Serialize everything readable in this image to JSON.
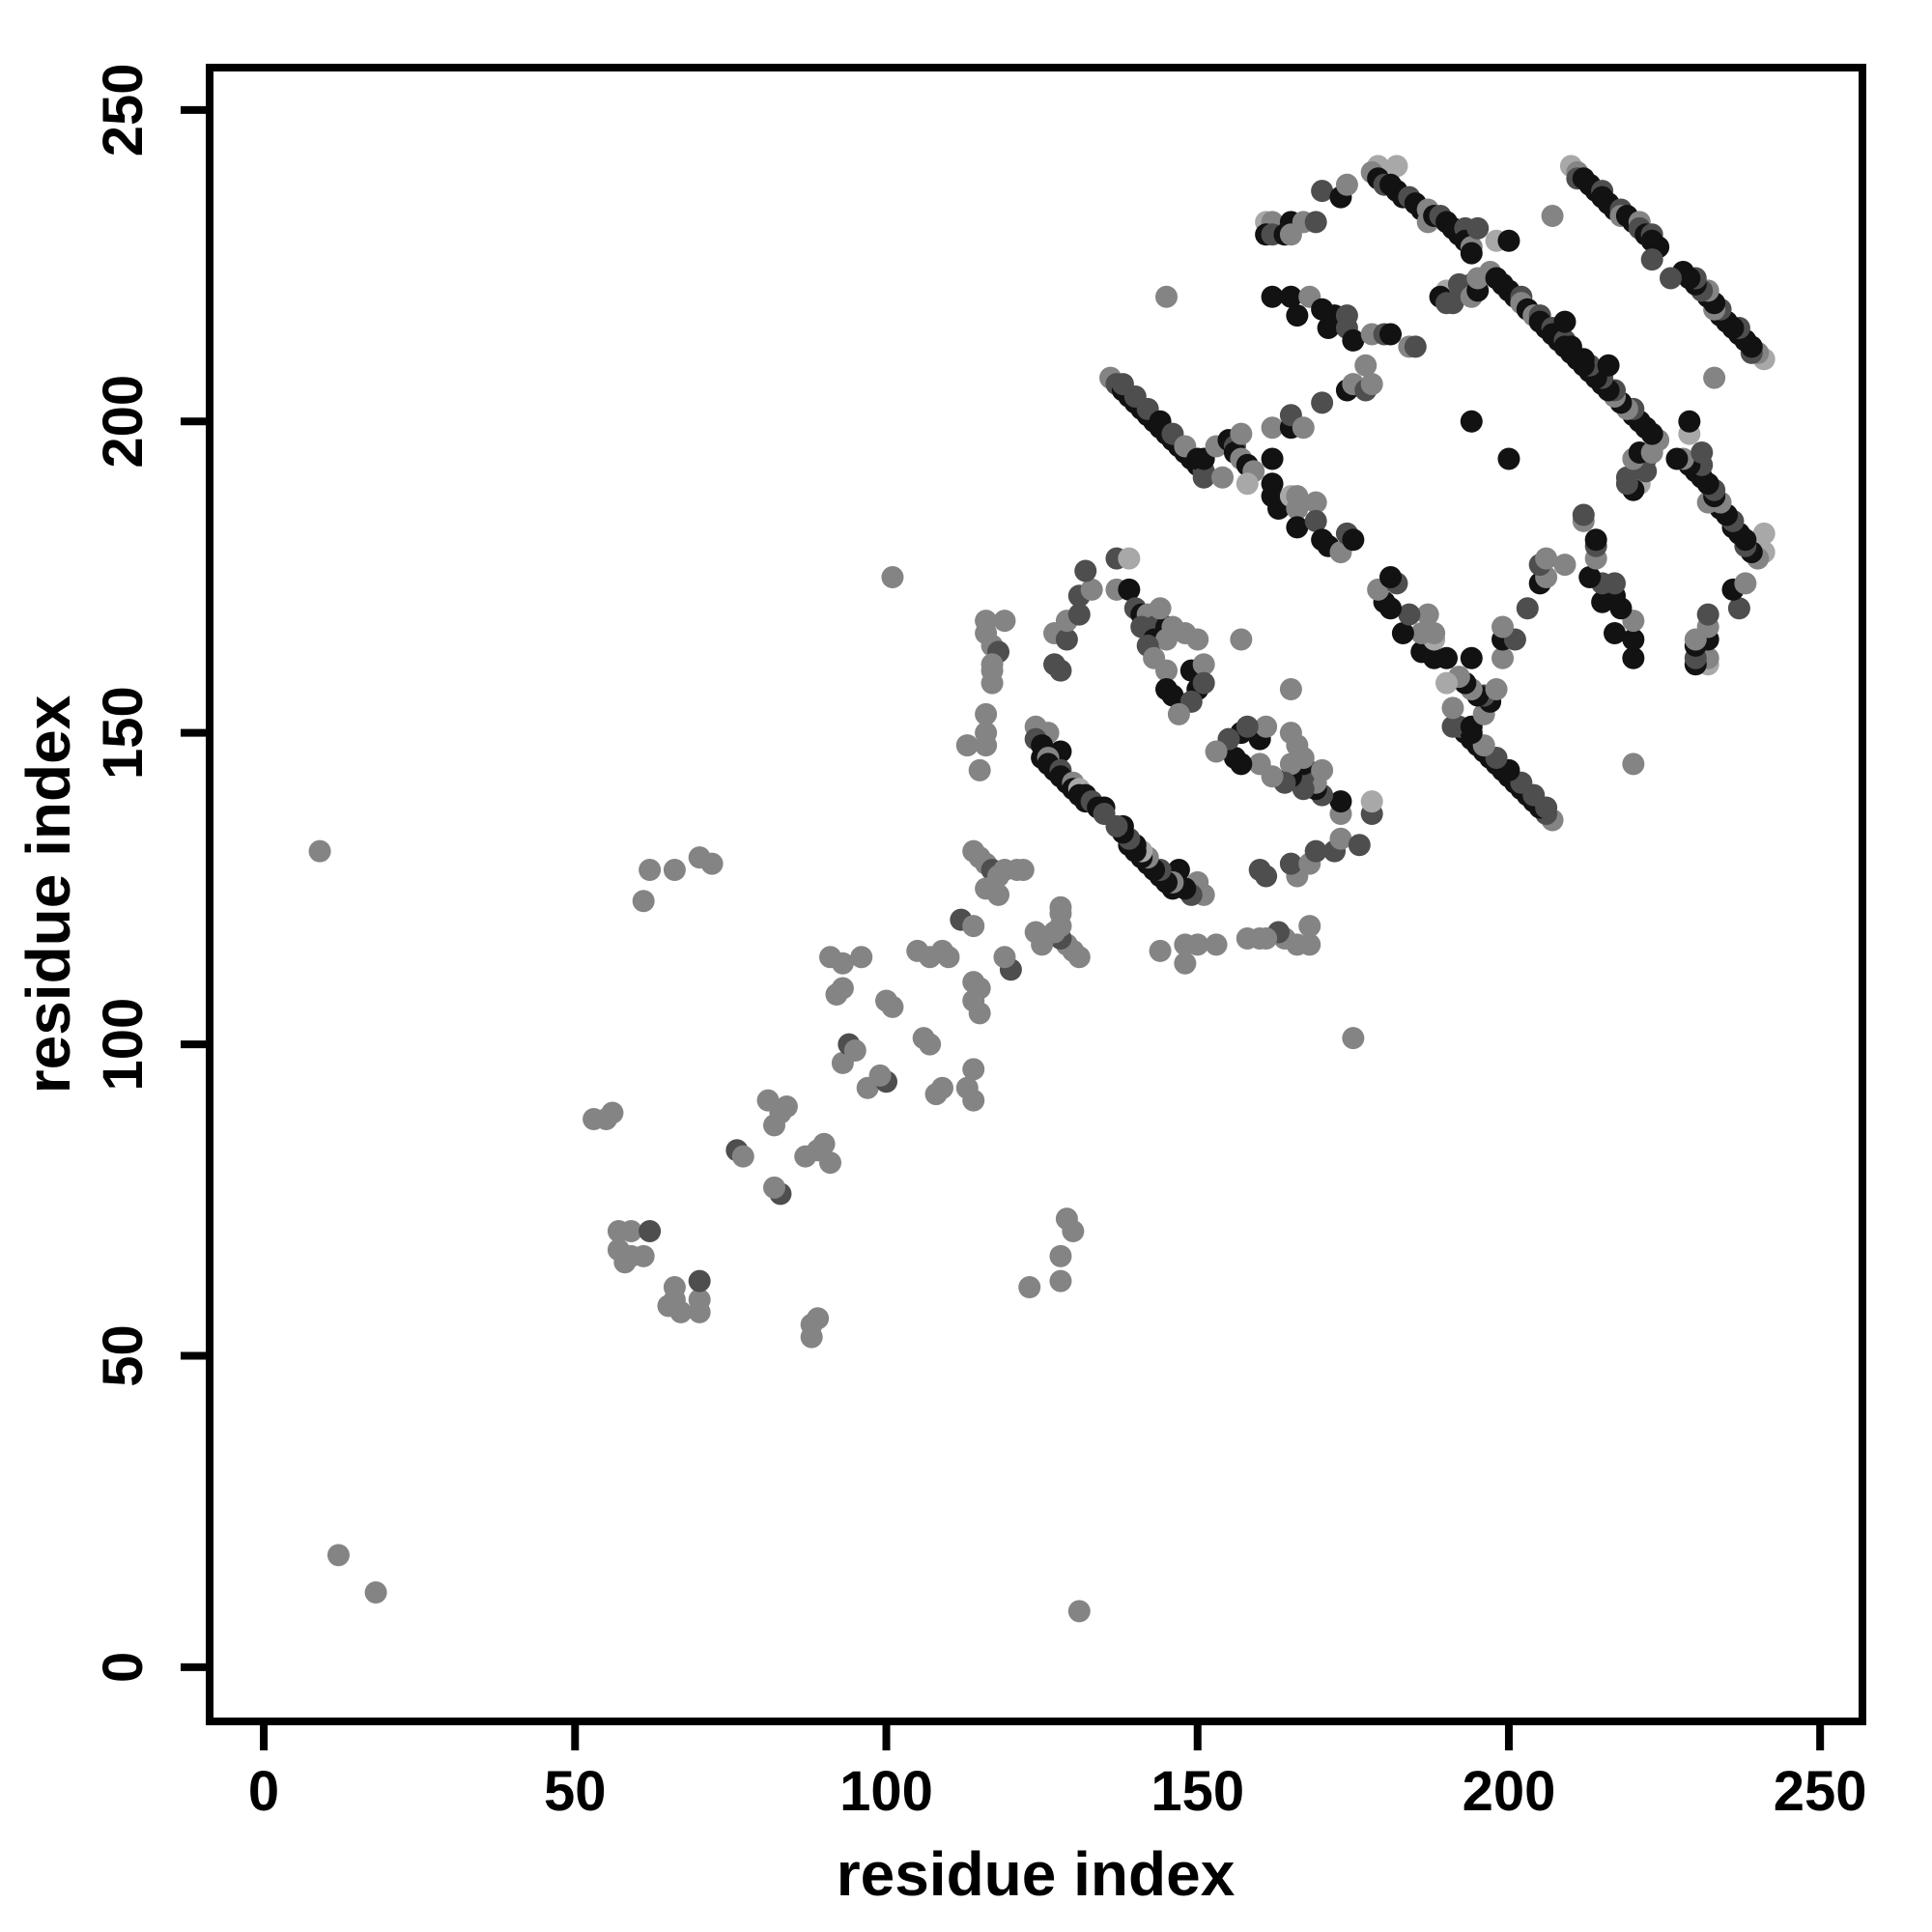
{
  "figure": {
    "background": "#ffffff",
    "frame_color": "#000000"
  },
  "chart_data": {
    "type": "scatter",
    "title": "",
    "xlabel": "residue index",
    "ylabel": "residue index",
    "xlim": [
      -8.7,
      256.8
    ],
    "ylim": [
      -8.7,
      256.8
    ],
    "xticks": [
      0,
      50,
      100,
      150,
      200,
      250
    ],
    "yticks": [
      0,
      50,
      100,
      150,
      200,
      250
    ],
    "grid": false,
    "legend": "none",
    "marker_shape": "circle",
    "symmetric": true,
    "shade_colors": {
      "l": "#a8a8a8",
      "m": "#848484",
      "d": "#4e4e4e",
      "k": "#121212"
    },
    "points": [
      [
        12,
        18,
        "m"
      ],
      [
        9,
        131,
        "m"
      ],
      [
        61,
        123,
        "m"
      ],
      [
        62,
        128,
        "m"
      ],
      [
        66,
        128,
        "m"
      ],
      [
        70,
        130,
        "m"
      ],
      [
        72,
        129,
        "m"
      ],
      [
        53,
        88,
        "m"
      ],
      [
        55,
        88,
        "m"
      ],
      [
        56,
        89,
        "m"
      ],
      [
        57,
        70,
        "m"
      ],
      [
        59,
        70,
        "m"
      ],
      [
        62,
        70,
        "d"
      ],
      [
        57,
        67,
        "m"
      ],
      [
        59,
        66,
        "m"
      ],
      [
        61,
        66,
        "m"
      ],
      [
        58,
        65,
        "m"
      ],
      [
        76,
        83,
        "d"
      ],
      [
        77,
        82,
        "m"
      ],
      [
        82,
        87,
        "m"
      ],
      [
        83,
        89,
        "m"
      ],
      [
        84,
        90,
        "m"
      ],
      [
        81,
        91,
        "m"
      ],
      [
        93,
        97,
        "m"
      ],
      [
        94,
        100,
        "d"
      ],
      [
        95,
        99,
        "m"
      ],
      [
        100,
        107,
        "m"
      ],
      [
        101,
        106,
        "m"
      ],
      [
        92,
        108,
        "m"
      ],
      [
        93,
        109,
        "m"
      ],
      [
        91,
        114,
        "m"
      ],
      [
        93,
        113,
        "m"
      ],
      [
        96,
        114,
        "m"
      ],
      [
        105,
        115,
        "m"
      ],
      [
        107,
        114,
        "m"
      ],
      [
        109,
        115,
        "m"
      ],
      [
        110,
        114,
        "m"
      ],
      [
        112,
        120,
        "d"
      ],
      [
        114,
        119,
        "m"
      ],
      [
        101,
        175,
        "m"
      ],
      [
        114,
        131,
        "m"
      ],
      [
        115,
        130,
        "m"
      ],
      [
        116,
        129,
        "m"
      ],
      [
        117,
        128,
        "d"
      ],
      [
        119,
        128,
        "m"
      ],
      [
        121,
        128,
        "m"
      ],
      [
        122,
        128,
        "m"
      ],
      [
        118,
        127,
        "m"
      ],
      [
        116,
        125,
        "m"
      ],
      [
        118,
        124,
        "m"
      ],
      [
        113,
        148,
        "m"
      ],
      [
        116,
        148,
        "m"
      ],
      [
        116,
        150,
        "m"
      ],
      [
        115,
        144,
        "m"
      ],
      [
        116,
        168,
        "m"
      ],
      [
        119,
        168,
        "m"
      ],
      [
        116,
        166,
        "m"
      ],
      [
        117,
        164,
        "m"
      ],
      [
        118,
        163,
        "d"
      ],
      [
        117,
        161,
        "m"
      ],
      [
        117,
        160,
        "m"
      ],
      [
        117,
        158,
        "m"
      ],
      [
        116,
        153,
        "m"
      ],
      [
        124,
        151,
        "m"
      ],
      [
        126,
        150,
        "m"
      ],
      [
        124,
        149,
        "d"
      ],
      [
        125,
        148,
        "k"
      ],
      [
        128,
        147,
        "k"
      ],
      [
        125,
        146,
        "k"
      ],
      [
        126,
        146,
        "m"
      ],
      [
        126,
        145,
        "k"
      ],
      [
        127,
        144,
        "k"
      ],
      [
        128,
        144,
        "d"
      ],
      [
        128,
        143,
        "k"
      ],
      [
        129,
        142,
        "k"
      ],
      [
        130,
        142,
        "m"
      ],
      [
        130,
        141,
        "k"
      ],
      [
        131,
        141,
        "l"
      ],
      [
        131,
        140,
        "k"
      ],
      [
        132,
        140,
        "k"
      ],
      [
        132,
        139,
        "k"
      ],
      [
        133,
        139,
        "d"
      ],
      [
        134,
        138,
        "k"
      ],
      [
        135,
        138,
        "k"
      ],
      [
        135,
        137,
        "d"
      ],
      [
        128,
        160,
        "d"
      ],
      [
        127,
        161,
        "d"
      ],
      [
        127,
        166,
        "m"
      ],
      [
        129,
        165,
        "d"
      ],
      [
        129,
        168,
        "m"
      ],
      [
        131,
        169,
        "d"
      ],
      [
        131,
        172,
        "d"
      ],
      [
        133,
        173,
        "m"
      ],
      [
        132,
        176,
        "d"
      ],
      [
        137,
        178,
        "d"
      ],
      [
        139,
        178,
        "l"
      ],
      [
        137,
        173,
        "m"
      ],
      [
        139,
        173,
        "k"
      ],
      [
        140,
        170,
        "d"
      ],
      [
        141,
        169,
        "k"
      ],
      [
        142,
        169,
        "m"
      ],
      [
        141,
        167,
        "d"
      ],
      [
        143,
        167,
        "d"
      ],
      [
        145,
        167,
        "k"
      ],
      [
        146,
        167,
        "m"
      ],
      [
        143,
        165,
        "k"
      ],
      [
        145,
        165,
        "m"
      ],
      [
        142,
        164,
        "d"
      ],
      [
        143,
        162,
        "m"
      ],
      [
        145,
        160,
        "m"
      ],
      [
        149,
        160,
        "k"
      ],
      [
        151,
        161,
        "m"
      ],
      [
        150,
        157,
        "k"
      ],
      [
        151,
        158,
        "d"
      ],
      [
        145,
        157,
        "k"
      ],
      [
        146,
        156,
        "k"
      ],
      [
        149,
        155,
        "d"
      ],
      [
        147,
        153,
        "m"
      ],
      [
        148,
        166,
        "m"
      ],
      [
        150,
        165,
        "m"
      ],
      [
        157,
        165,
        "m"
      ],
      [
        144,
        170,
        "m"
      ],
      [
        136,
        207,
        "m"
      ],
      [
        137,
        206,
        "d"
      ],
      [
        138,
        205,
        "k"
      ],
      [
        139,
        204,
        "k"
      ],
      [
        140,
        203,
        "k"
      ],
      [
        141,
        202,
        "k"
      ],
      [
        142,
        201,
        "k"
      ],
      [
        143,
        200,
        "k"
      ],
      [
        144,
        199,
        "k"
      ],
      [
        145,
        198,
        "k"
      ],
      [
        146,
        197,
        "k"
      ],
      [
        147,
        196,
        "k"
      ],
      [
        148,
        195,
        "k"
      ],
      [
        149,
        194,
        "k"
      ],
      [
        150,
        193,
        "k"
      ],
      [
        151,
        192,
        "d"
      ],
      [
        138,
        206,
        "d"
      ],
      [
        140,
        204,
        "d"
      ],
      [
        142,
        202,
        "d"
      ],
      [
        144,
        200,
        "k"
      ],
      [
        146,
        198,
        "d"
      ],
      [
        148,
        196,
        "m"
      ],
      [
        150,
        194,
        "k"
      ],
      [
        151,
        191,
        "d"
      ],
      [
        151,
        194,
        "k"
      ],
      [
        153,
        196,
        "m"
      ],
      [
        154,
        191,
        "m"
      ],
      [
        155,
        197,
        "k"
      ],
      [
        156,
        196,
        "d"
      ],
      [
        156,
        195,
        "k"
      ],
      [
        157,
        198,
        "m"
      ],
      [
        157,
        194,
        "m"
      ],
      [
        158,
        193,
        "k"
      ],
      [
        159,
        192,
        "m"
      ],
      [
        158,
        190,
        "l"
      ],
      [
        162,
        194,
        "k"
      ],
      [
        162,
        190,
        "k"
      ],
      [
        162,
        188,
        "k"
      ],
      [
        163,
        186,
        "k"
      ],
      [
        165,
        188,
        "l"
      ],
      [
        166,
        188,
        "m"
      ],
      [
        166,
        186,
        "m"
      ],
      [
        169,
        187,
        "m"
      ],
      [
        166,
        183,
        "k"
      ],
      [
        169,
        184,
        "d"
      ],
      [
        170,
        181,
        "k"
      ],
      [
        171,
        180,
        "k"
      ],
      [
        173,
        179,
        "m"
      ],
      [
        174,
        182,
        "d"
      ],
      [
        175,
        181,
        "k"
      ],
      [
        162,
        199,
        "m"
      ],
      [
        165,
        199,
        "k"
      ],
      [
        165,
        201,
        "d"
      ],
      [
        167,
        199,
        "m"
      ],
      [
        170,
        203,
        "d"
      ],
      [
        174,
        205,
        "k"
      ],
      [
        175,
        206,
        "m"
      ],
      [
        177,
        205,
        "d"
      ],
      [
        178,
        206,
        "m"
      ],
      [
        162,
        220,
        "k"
      ],
      [
        165,
        220,
        "k"
      ],
      [
        168,
        220,
        "m"
      ],
      [
        166,
        217,
        "k"
      ],
      [
        170,
        218,
        "k"
      ],
      [
        172,
        217,
        "k"
      ],
      [
        174,
        217,
        "d"
      ],
      [
        171,
        215,
        "k"
      ],
      [
        174,
        215,
        "d"
      ],
      [
        175,
        213,
        "k"
      ],
      [
        178,
        214,
        "m"
      ],
      [
        180,
        214,
        "d"
      ],
      [
        181,
        214,
        "k"
      ],
      [
        184,
        212,
        "m"
      ],
      [
        185,
        212,
        "d"
      ],
      [
        177,
        209,
        "m"
      ],
      [
        161,
        232,
        "l"
      ],
      [
        162,
        232,
        "m"
      ],
      [
        165,
        232,
        "k"
      ],
      [
        167,
        232,
        "m"
      ],
      [
        169,
        232,
        "d"
      ],
      [
        161,
        230,
        "k"
      ],
      [
        162,
        230,
        "d"
      ],
      [
        164,
        230,
        "k"
      ],
      [
        165,
        230,
        "m"
      ],
      [
        170,
        237,
        "d"
      ],
      [
        173,
        236,
        "k"
      ],
      [
        174,
        238,
        "m"
      ],
      [
        179,
        241,
        "l"
      ],
      [
        182,
        241,
        "l"
      ],
      [
        178,
        240,
        "m"
      ],
      [
        179,
        239,
        "k"
      ],
      [
        180,
        238,
        "d"
      ],
      [
        181,
        238,
        "k"
      ],
      [
        182,
        237,
        "k"
      ],
      [
        183,
        236,
        "k"
      ],
      [
        184,
        236,
        "d"
      ],
      [
        185,
        235,
        "k"
      ],
      [
        186,
        234,
        "k"
      ],
      [
        187,
        234,
        "m"
      ],
      [
        187,
        232,
        "m"
      ],
      [
        188,
        233,
        "k"
      ],
      [
        189,
        233,
        "d"
      ],
      [
        190,
        232,
        "k"
      ],
      [
        191,
        231,
        "k"
      ],
      [
        192,
        230,
        "k"
      ],
      [
        193,
        231,
        "d"
      ],
      [
        193,
        229,
        "k"
      ],
      [
        194,
        228,
        "m"
      ],
      [
        194,
        227,
        "k"
      ],
      [
        190,
        221,
        "l"
      ],
      [
        191,
        219,
        "d"
      ],
      [
        192,
        222,
        "d"
      ],
      [
        194,
        222,
        "d"
      ],
      [
        194,
        220,
        "m"
      ],
      [
        195,
        221,
        "k"
      ],
      [
        189,
        220,
        "k"
      ],
      [
        190,
        219,
        "d"
      ],
      [
        195,
        231,
        "d"
      ],
      [
        195,
        223,
        "m"
      ],
      [
        145,
        220,
        "m"
      ],
      [
        194,
        200,
        "k"
      ],
      [
        198,
        229,
        "l"
      ],
      [
        200,
        229,
        "k"
      ],
      [
        207,
        233,
        "m"
      ],
      [
        197,
        224,
        "m"
      ],
      [
        198,
        223,
        "k"
      ],
      [
        199,
        222,
        "k"
      ],
      [
        200,
        221,
        "k"
      ],
      [
        201,
        220,
        "k"
      ],
      [
        202,
        220,
        "d"
      ],
      [
        202,
        219,
        "m"
      ],
      [
        203,
        218,
        "k"
      ],
      [
        204,
        217,
        "m"
      ],
      [
        205,
        217,
        "d"
      ],
      [
        205,
        216,
        "k"
      ],
      [
        206,
        215,
        "k"
      ],
      [
        207,
        215,
        "d"
      ],
      [
        207,
        214,
        "k"
      ],
      [
        208,
        213,
        "k"
      ],
      [
        209,
        213,
        "d"
      ],
      [
        209,
        212,
        "k"
      ],
      [
        210,
        212,
        "k"
      ],
      [
        210,
        211,
        "k"
      ],
      [
        209,
        216,
        "k"
      ],
      [
        210,
        241,
        "l"
      ],
      [
        211,
        240,
        "m"
      ],
      [
        211,
        239,
        "d"
      ],
      [
        212,
        239,
        "k"
      ],
      [
        213,
        238,
        "k"
      ],
      [
        214,
        237,
        "k"
      ],
      [
        215,
        237,
        "d"
      ],
      [
        215,
        236,
        "k"
      ],
      [
        216,
        235,
        "k"
      ],
      [
        217,
        234,
        "k"
      ],
      [
        218,
        234,
        "d"
      ],
      [
        218,
        233,
        "m"
      ],
      [
        219,
        233,
        "k"
      ],
      [
        220,
        232,
        "k"
      ],
      [
        221,
        232,
        "m"
      ],
      [
        221,
        231,
        "d"
      ],
      [
        222,
        230,
        "k"
      ],
      [
        223,
        230,
        "d"
      ],
      [
        223,
        229,
        "k"
      ],
      [
        224,
        228,
        "k"
      ],
      [
        223,
        226,
        "d"
      ]
    ]
  }
}
